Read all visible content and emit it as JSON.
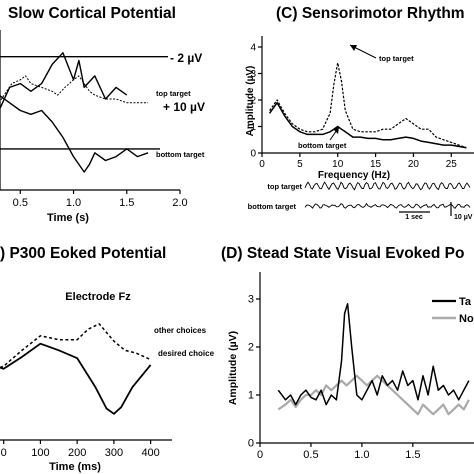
{
  "chart_data": [
    {
      "id": "A",
      "type": "line",
      "title": "Slow Cortical Potential",
      "xlabel": "Time (s)",
      "ylabel": "",
      "xlim": [
        0.3,
        2.0
      ],
      "ylim": [
        -3,
        13
      ],
      "x_ticks": [
        "0.5",
        "1.0",
        "1.5",
        "2.0"
      ],
      "x_tick_values": [
        0.5,
        1.0,
        1.5,
        2.0
      ],
      "reference_lines": [
        {
          "label": "- 2 µV",
          "value": -2
        },
        {
          "label": "+ 10 µV",
          "value": 10
        }
      ],
      "series": [
        {
          "name": "top target",
          "style": "dashed",
          "x": [
            0.3,
            0.42,
            0.5,
            0.55,
            0.6,
            0.7,
            0.8,
            0.85,
            0.92,
            1.0,
            1.05,
            1.1,
            1.15,
            1.2,
            1.3,
            1.4,
            1.5,
            1.6,
            1.7
          ],
          "y": [
            4,
            1.5,
            1.0,
            0.5,
            1.5,
            2.0,
            2.5,
            3.0,
            2.0,
            1.0,
            0.5,
            1.5,
            2.5,
            3.0,
            3.5,
            3.5,
            4.0,
            4.0,
            4.0
          ]
        },
        {
          "name": "",
          "style": "solid-upper",
          "x": [
            0.3,
            0.4,
            0.5,
            0.6,
            0.7,
            0.8,
            0.9,
            1.0,
            1.05,
            1.1,
            1.2,
            1.3,
            1.4,
            1.5
          ],
          "y": [
            5,
            2.0,
            1.5,
            2.5,
            1.5,
            -1.0,
            -2.5,
            1.0,
            -1.5,
            2.0,
            0.5,
            3.5,
            2.0,
            3.0
          ]
        },
        {
          "name": "bottom target",
          "style": "solid",
          "x": [
            0.3,
            0.4,
            0.5,
            0.6,
            0.7,
            0.8,
            0.9,
            1.0,
            1.1,
            1.15,
            1.2,
            1.3,
            1.4,
            1.5,
            1.6,
            1.7
          ],
          "y": [
            3,
            4.0,
            5.0,
            5.5,
            5.0,
            6.5,
            8.5,
            11.0,
            13.0,
            12.0,
            10.5,
            11.5,
            11.0,
            10.0,
            11.0,
            10.5
          ]
        }
      ]
    },
    {
      "id": "C",
      "type": "line",
      "title": "(C) Sensorimotor Rhythm",
      "xlabel": "Frequency (Hz)",
      "ylabel": "Amplitude (µV)",
      "xlim": [
        0,
        28
      ],
      "ylim": [
        0,
        4
      ],
      "x_ticks": [
        "0",
        "5",
        "10",
        "15",
        "20",
        "25"
      ],
      "x_tick_values": [
        0,
        5,
        10,
        15,
        20,
        25
      ],
      "y_ticks": [
        "0",
        "1",
        "2",
        "3",
        "4"
      ],
      "y_tick_values": [
        0,
        1,
        2,
        3,
        4
      ],
      "series": [
        {
          "name": "top target",
          "style": "dashed",
          "x": [
            1,
            2,
            3,
            4,
            5,
            6,
            7,
            8,
            9,
            9.5,
            10,
            10.5,
            11,
            12,
            13,
            14,
            15,
            16,
            17,
            18,
            19,
            20,
            21,
            22,
            23,
            24,
            25,
            26,
            27
          ],
          "y": [
            1.6,
            2.0,
            1.5,
            1.1,
            0.9,
            0.8,
            0.8,
            0.9,
            1.5,
            2.6,
            3.4,
            2.7,
            1.6,
            0.9,
            0.8,
            0.8,
            0.8,
            0.9,
            0.9,
            1.1,
            1.3,
            1.1,
            0.9,
            0.9,
            0.6,
            0.5,
            0.4,
            0.3,
            0.2
          ]
        },
        {
          "name": "bottom target",
          "style": "solid",
          "x": [
            1,
            2,
            3,
            4,
            5,
            6,
            7,
            8,
            9,
            9.5,
            10,
            10.5,
            11,
            12,
            13,
            14,
            15,
            16,
            17,
            18,
            19,
            20,
            21,
            22,
            23,
            24,
            25,
            26,
            27
          ],
          "y": [
            1.5,
            1.9,
            1.4,
            1.0,
            0.8,
            0.7,
            0.7,
            0.7,
            0.8,
            0.9,
            1.0,
            0.9,
            0.8,
            0.6,
            0.6,
            0.55,
            0.55,
            0.5,
            0.5,
            0.55,
            0.6,
            0.55,
            0.45,
            0.4,
            0.35,
            0.3,
            0.3,
            0.25,
            0.2
          ]
        }
      ],
      "annotations": [
        {
          "text": "top target"
        },
        {
          "text": "bottom target"
        }
      ],
      "trace_labels": [
        "top target",
        "bottom target"
      ],
      "scale_labels": [
        "1 sec",
        "10 µV"
      ]
    },
    {
      "id": "B",
      "type": "line",
      "title": ") P300 Eoked Potential",
      "subtitle": "Electrode Fz",
      "xlabel": "Time (ms)",
      "ylabel": "",
      "xlim": [
        -10,
        450
      ],
      "ylim": [
        -6,
        3
      ],
      "x_ticks": [
        "0",
        "100",
        "200",
        "300",
        "400"
      ],
      "x_tick_values": [
        0,
        100,
        200,
        300,
        400
      ],
      "series": [
        {
          "name": "other choices",
          "style": "dashed",
          "x": [
            -10,
            0,
            50,
            100,
            150,
            200,
            230,
            260,
            300,
            330,
            360,
            400
          ],
          "y": [
            -1.5,
            -1.4,
            -0.2,
            0.9,
            0.6,
            0.6,
            1.4,
            1.8,
            0.5,
            -0.2,
            -0.4,
            -0.9
          ]
        },
        {
          "name": "desired choice",
          "style": "solid",
          "x": [
            -10,
            0,
            50,
            100,
            150,
            200,
            250,
            280,
            300,
            320,
            350,
            400
          ],
          "y": [
            -1.5,
            -1.6,
            -0.7,
            0.3,
            -0.2,
            -0.8,
            -3.0,
            -4.6,
            -5.0,
            -4.5,
            -3.0,
            -1.3
          ]
        }
      ]
    },
    {
      "id": "D",
      "type": "line",
      "title": "(D) Stead State Visual Evoked Po",
      "xlabel": "",
      "ylabel": "Amplitude (µV)",
      "xlim": [
        0,
        2.1
      ],
      "ylim": [
        0,
        3.5
      ],
      "x_ticks": [
        "0",
        "0.5",
        "1.0",
        "1.5"
      ],
      "x_tick_values": [
        0,
        0.5,
        1.0,
        1.5
      ],
      "y_ticks": [
        "0",
        "1",
        "2",
        "3"
      ],
      "y_tick_values": [
        0,
        1,
        2,
        3
      ],
      "legend": [
        "Ta",
        "No"
      ],
      "series": [
        {
          "name": "Ta",
          "color": "#000000",
          "x": [
            0.18,
            0.25,
            0.3,
            0.35,
            0.4,
            0.45,
            0.5,
            0.55,
            0.6,
            0.65,
            0.7,
            0.75,
            0.8,
            0.83,
            0.86,
            0.9,
            0.95,
            1.0,
            1.05,
            1.1,
            1.15,
            1.2,
            1.25,
            1.3,
            1.35,
            1.4,
            1.45,
            1.5,
            1.55,
            1.6,
            1.65,
            1.7,
            1.75,
            1.8,
            1.85,
            1.9,
            1.95,
            2.0,
            2.05
          ],
          "y": [
            1.1,
            0.9,
            1.0,
            0.8,
            1.0,
            1.1,
            0.95,
            0.9,
            1.1,
            0.8,
            1.0,
            0.9,
            1.7,
            2.7,
            2.9,
            2.0,
            1.0,
            0.9,
            1.1,
            1.3,
            1.0,
            1.4,
            1.2,
            1.3,
            1.1,
            1.5,
            1.2,
            1.3,
            0.9,
            1.4,
            1.0,
            1.6,
            1.1,
            1.2,
            1.0,
            1.1,
            0.9,
            1.1,
            1.3
          ]
        },
        {
          "name": "No",
          "color": "#aaaaaa",
          "x": [
            0.18,
            0.25,
            0.3,
            0.35,
            0.4,
            0.45,
            0.5,
            0.55,
            0.6,
            0.65,
            0.7,
            0.75,
            0.8,
            0.85,
            0.9,
            0.95,
            1.0,
            1.05,
            1.1,
            1.15,
            1.2,
            1.25,
            1.3,
            1.35,
            1.4,
            1.45,
            1.5,
            1.55,
            1.6,
            1.65,
            1.7,
            1.75,
            1.8,
            1.85,
            1.9,
            1.95,
            2.0,
            2.05
          ],
          "y": [
            0.7,
            0.8,
            0.9,
            0.75,
            0.9,
            1.0,
            1.0,
            1.1,
            1.0,
            1.2,
            1.1,
            1.2,
            1.3,
            1.2,
            1.3,
            1.4,
            1.3,
            1.2,
            1.3,
            1.4,
            1.3,
            1.2,
            1.1,
            1.0,
            0.9,
            0.8,
            0.7,
            0.6,
            0.8,
            0.7,
            0.6,
            0.7,
            0.8,
            0.6,
            0.7,
            0.8,
            0.7,
            0.9
          ]
        }
      ]
    }
  ]
}
